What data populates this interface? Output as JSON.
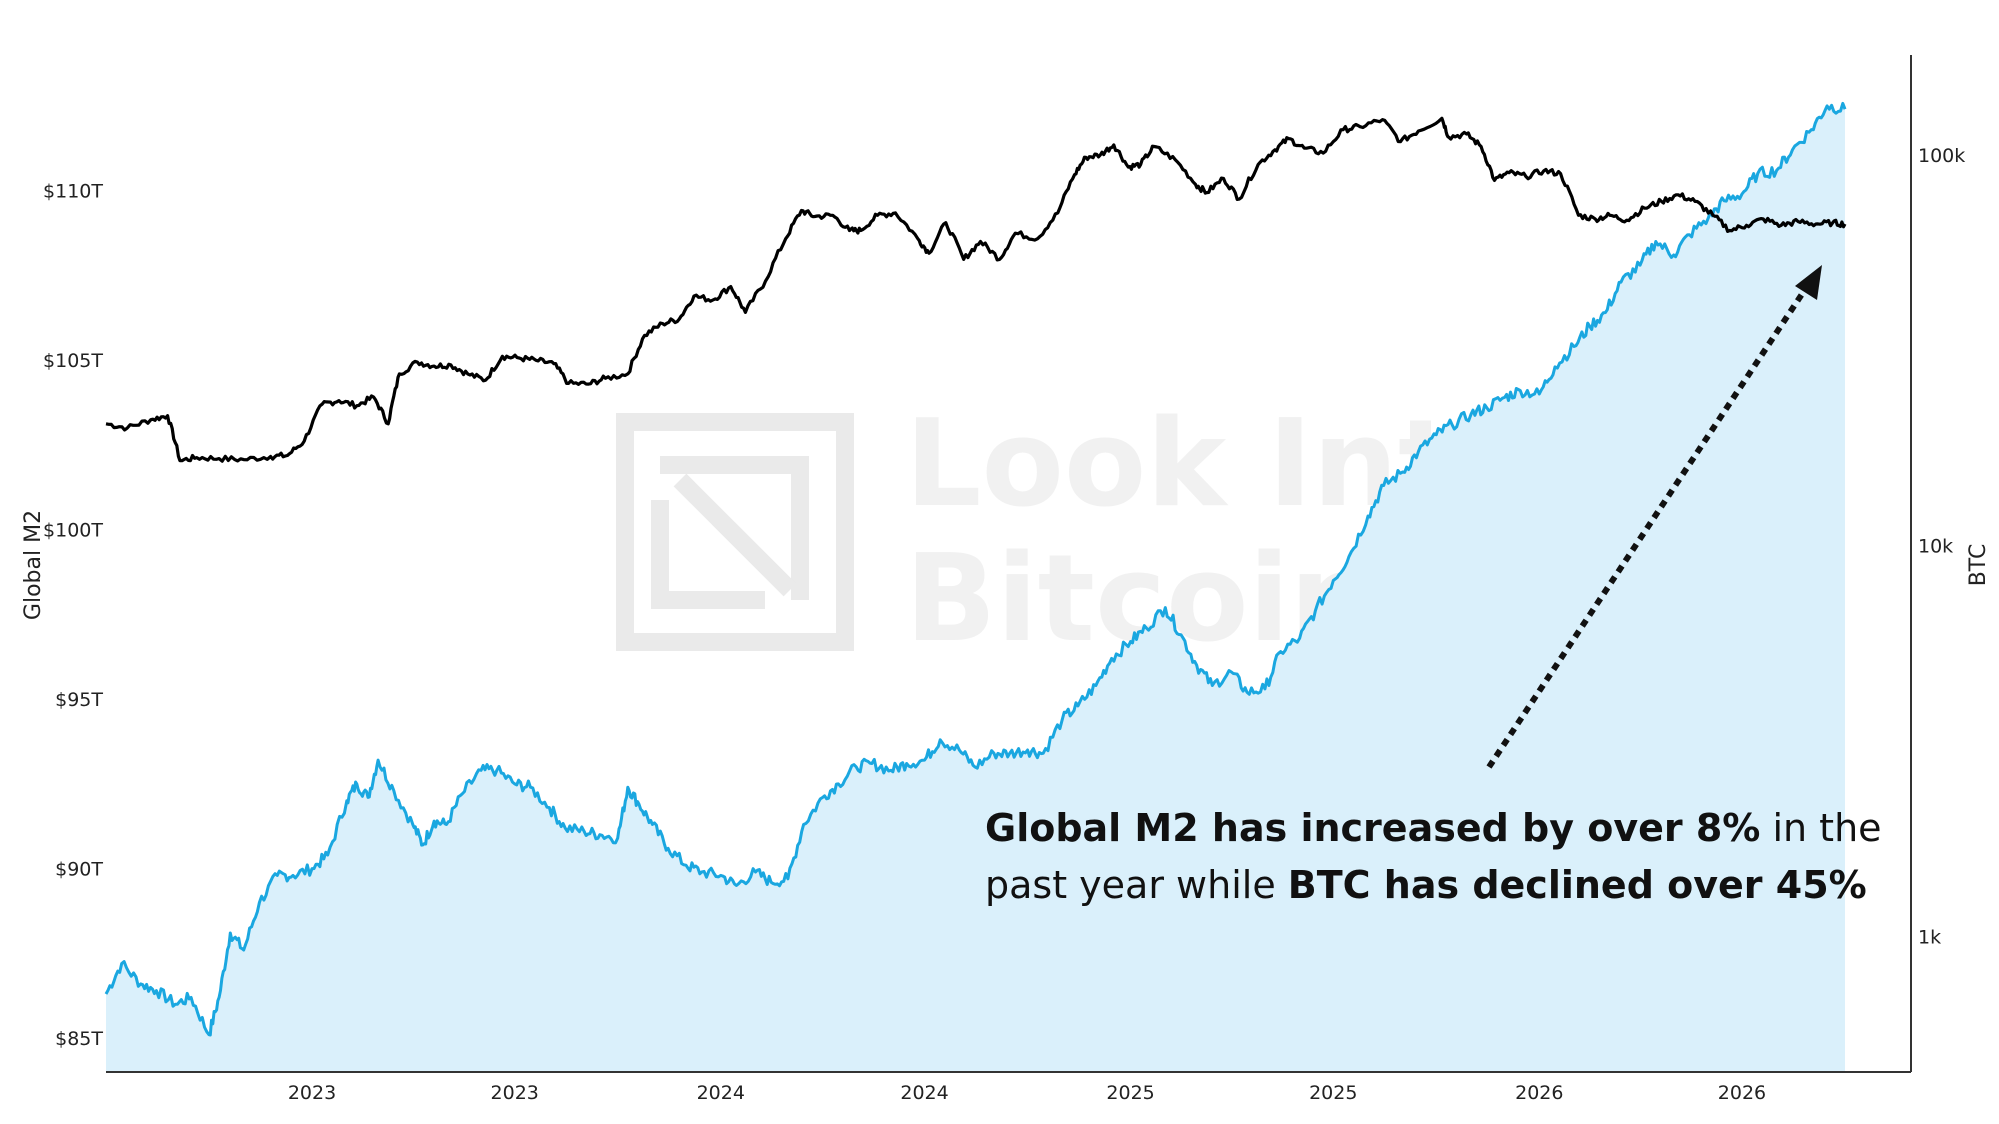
{
  "chart_data": {
    "type": "line",
    "left_axis": {
      "title": "Global M2",
      "ticks": [
        "$85T",
        "$90T",
        "$95T",
        "$100T",
        "$105T",
        "$110T"
      ],
      "tick_values": [
        85,
        90,
        95,
        100,
        105,
        110
      ],
      "range": [
        84.0,
        114.0
      ]
    },
    "right_axis": {
      "title": "BTC",
      "scale": "log",
      "ticks": [
        "1k",
        "10k",
        "100k"
      ],
      "tick_values": [
        1000,
        10000,
        100000
      ],
      "range": [
        450,
        180000
      ]
    },
    "x_axis": {
      "tick_labels": [
        "2023",
        "2023",
        "2024",
        "2024",
        "2025",
        "2025",
        "2026",
        "2026"
      ],
      "tick_dates": [
        "2023-01-01",
        "2023-07-01",
        "2024-01-01",
        "2024-07-01",
        "2025-01-01",
        "2025-07-01",
        "2026-01-01",
        "2026-07-01"
      ],
      "range": [
        "2022-07-01",
        "2026-10-01"
      ]
    },
    "series": [
      {
        "name": "Global M2",
        "axis": "left",
        "color": "#1aa7e0",
        "fill": "#daf0fb",
        "points": [
          [
            "2022-07-01",
            86.3
          ],
          [
            "2022-07-15",
            87.2
          ],
          [
            "2022-08-01",
            86.6
          ],
          [
            "2022-08-15",
            86.4
          ],
          [
            "2022-09-01",
            86.0
          ],
          [
            "2022-09-15",
            86.2
          ],
          [
            "2022-10-01",
            85.1
          ],
          [
            "2022-10-10",
            86.2
          ],
          [
            "2022-10-20",
            88.1
          ],
          [
            "2022-11-01",
            87.6
          ],
          [
            "2022-11-15",
            89.0
          ],
          [
            "2022-12-01",
            89.8
          ],
          [
            "2022-12-15",
            89.8
          ],
          [
            "2023-01-01",
            90.0
          ],
          [
            "2023-01-15",
            90.4
          ],
          [
            "2023-02-01",
            92.0
          ],
          [
            "2023-02-10",
            92.5
          ],
          [
            "2023-02-20",
            92.1
          ],
          [
            "2023-03-01",
            93.2
          ],
          [
            "2023-03-15",
            92.3
          ],
          [
            "2023-04-01",
            91.3
          ],
          [
            "2023-04-10",
            90.7
          ],
          [
            "2023-04-20",
            91.4
          ],
          [
            "2023-05-01",
            91.3
          ],
          [
            "2023-05-15",
            92.2
          ],
          [
            "2023-06-01",
            92.9
          ],
          [
            "2023-06-15",
            92.9
          ],
          [
            "2023-07-01",
            92.5
          ],
          [
            "2023-07-15",
            92.4
          ],
          [
            "2023-08-01",
            91.8
          ],
          [
            "2023-08-15",
            91.2
          ],
          [
            "2023-09-01",
            91.1
          ],
          [
            "2023-09-15",
            91.0
          ],
          [
            "2023-10-01",
            90.9
          ],
          [
            "2023-10-10",
            92.4
          ],
          [
            "2023-10-20",
            91.9
          ],
          [
            "2023-11-01",
            91.3
          ],
          [
            "2023-11-15",
            90.6
          ],
          [
            "2023-12-01",
            90.1
          ],
          [
            "2023-12-15",
            89.9
          ],
          [
            "2024-01-01",
            89.8
          ],
          [
            "2024-01-15",
            89.5
          ],
          [
            "2024-02-01",
            89.9
          ],
          [
            "2024-02-15",
            89.6
          ],
          [
            "2024-03-01",
            89.7
          ],
          [
            "2024-03-15",
            91.3
          ],
          [
            "2024-04-01",
            92.1
          ],
          [
            "2024-04-15",
            92.5
          ],
          [
            "2024-05-01",
            93.0
          ],
          [
            "2024-05-15",
            93.1
          ],
          [
            "2024-06-01",
            92.9
          ],
          [
            "2024-06-15",
            93.1
          ],
          [
            "2024-07-01",
            93.2
          ],
          [
            "2024-07-15",
            93.8
          ],
          [
            "2024-08-01",
            93.5
          ],
          [
            "2024-08-15",
            93.0
          ],
          [
            "2024-09-01",
            93.4
          ],
          [
            "2024-09-15",
            93.4
          ],
          [
            "2024-10-01",
            93.5
          ],
          [
            "2024-10-15",
            93.4
          ],
          [
            "2024-11-01",
            94.4
          ],
          [
            "2024-11-15",
            94.8
          ],
          [
            "2024-12-01",
            95.4
          ],
          [
            "2024-12-15",
            96.2
          ],
          [
            "2025-01-01",
            96.7
          ],
          [
            "2025-01-15",
            97.1
          ],
          [
            "2025-02-01",
            97.7
          ],
          [
            "2025-02-15",
            96.9
          ],
          [
            "2025-03-01",
            96.0
          ],
          [
            "2025-03-15",
            95.4
          ],
          [
            "2025-04-01",
            95.8
          ],
          [
            "2025-04-15",
            95.2
          ],
          [
            "2025-05-01",
            95.3
          ],
          [
            "2025-05-15",
            96.4
          ],
          [
            "2025-06-01",
            96.8
          ],
          [
            "2025-06-15",
            97.6
          ],
          [
            "2025-07-01",
            98.5
          ],
          [
            "2025-07-15",
            99.2
          ],
          [
            "2025-08-01",
            100.4
          ],
          [
            "2025-08-15",
            101.3
          ],
          [
            "2025-09-01",
            101.7
          ],
          [
            "2025-09-15",
            102.3
          ],
          [
            "2025-10-01",
            102.8
          ],
          [
            "2025-10-15",
            103.1
          ],
          [
            "2025-11-01",
            103.4
          ],
          [
            "2025-11-15",
            103.6
          ],
          [
            "2025-12-01",
            103.9
          ],
          [
            "2025-12-15",
            104.1
          ],
          [
            "2026-01-01",
            104.0
          ],
          [
            "2026-01-15",
            104.8
          ],
          [
            "2026-02-01",
            105.4
          ],
          [
            "2026-02-15",
            106.0
          ],
          [
            "2026-03-01",
            106.4
          ],
          [
            "2026-03-15",
            107.3
          ],
          [
            "2026-04-01",
            107.8
          ],
          [
            "2026-04-15",
            108.5
          ],
          [
            "2026-05-01",
            108.1
          ],
          [
            "2026-05-15",
            108.7
          ],
          [
            "2026-06-01",
            109.2
          ],
          [
            "2026-06-15",
            109.7
          ],
          [
            "2026-07-01",
            109.9
          ],
          [
            "2026-07-15",
            110.5
          ],
          [
            "2026-08-01",
            110.6
          ],
          [
            "2026-08-15",
            111.2
          ],
          [
            "2026-09-01",
            111.8
          ],
          [
            "2026-09-15",
            112.5
          ],
          [
            "2026-10-01",
            112.4
          ]
        ]
      },
      {
        "name": "BTC",
        "axis": "right",
        "color": "#000000",
        "points": [
          [
            "2022-07-01",
            20500
          ],
          [
            "2022-07-20",
            20000
          ],
          [
            "2022-08-10",
            21000
          ],
          [
            "2022-08-25",
            21500
          ],
          [
            "2022-09-05",
            16500
          ],
          [
            "2022-09-20",
            16800
          ],
          [
            "2022-10-10",
            16700
          ],
          [
            "2022-11-01",
            16600
          ],
          [
            "2022-11-25",
            16900
          ],
          [
            "2022-12-10",
            17000
          ],
          [
            "2022-12-25",
            18500
          ],
          [
            "2023-01-10",
            23000
          ],
          [
            "2023-01-25",
            23500
          ],
          [
            "2023-02-10",
            22800
          ],
          [
            "2023-02-25",
            24000
          ],
          [
            "2023-03-10",
            20500
          ],
          [
            "2023-03-20",
            27500
          ],
          [
            "2023-04-05",
            29500
          ],
          [
            "2023-04-20",
            28800
          ],
          [
            "2023-05-05",
            29000
          ],
          [
            "2023-05-20",
            27500
          ],
          [
            "2023-06-05",
            26500
          ],
          [
            "2023-06-20",
            30500
          ],
          [
            "2023-07-05",
            30200
          ],
          [
            "2023-07-20",
            29800
          ],
          [
            "2023-08-05",
            29200
          ],
          [
            "2023-08-18",
            26000
          ],
          [
            "2023-09-05",
            25900
          ],
          [
            "2023-09-20",
            26800
          ],
          [
            "2023-10-10",
            27500
          ],
          [
            "2023-10-25",
            34500
          ],
          [
            "2023-11-10",
            37000
          ],
          [
            "2023-11-25",
            38000
          ],
          [
            "2023-12-08",
            43500
          ],
          [
            "2023-12-25",
            42500
          ],
          [
            "2024-01-10",
            46000
          ],
          [
            "2024-01-23",
            39500
          ],
          [
            "2024-02-10",
            47500
          ],
          [
            "2024-02-28",
            61000
          ],
          [
            "2024-03-13",
            72000
          ],
          [
            "2024-03-25",
            69500
          ],
          [
            "2024-04-10",
            70000
          ],
          [
            "2024-04-25",
            64000
          ],
          [
            "2024-05-05",
            64000
          ],
          [
            "2024-05-20",
            70000
          ],
          [
            "2024-06-05",
            71000
          ],
          [
            "2024-06-25",
            61000
          ],
          [
            "2024-07-05",
            56000
          ],
          [
            "2024-07-20",
            67000
          ],
          [
            "2024-08-05",
            54000
          ],
          [
            "2024-08-20",
            60000
          ],
          [
            "2024-09-06",
            54000
          ],
          [
            "2024-09-20",
            63000
          ],
          [
            "2024-10-10",
            61000
          ],
          [
            "2024-10-28",
            71000
          ],
          [
            "2024-11-12",
            89000
          ],
          [
            "2024-11-22",
            98500
          ],
          [
            "2024-12-05",
            100000
          ],
          [
            "2024-12-17",
            106000
          ],
          [
            "2024-12-30",
            93000
          ],
          [
            "2025-01-10",
            94500
          ],
          [
            "2025-01-22",
            105000
          ],
          [
            "2025-02-10",
            97000
          ],
          [
            "2025-02-28",
            84000
          ],
          [
            "2025-03-10",
            80000
          ],
          [
            "2025-03-25",
            87000
          ],
          [
            "2025-04-08",
            77000
          ],
          [
            "2025-04-25",
            94500
          ],
          [
            "2025-05-10",
            103000
          ],
          [
            "2025-05-22",
            110000
          ],
          [
            "2025-06-05",
            104000
          ],
          [
            "2025-06-22",
            101000
          ],
          [
            "2025-07-10",
            116000
          ],
          [
            "2025-07-25",
            118000
          ],
          [
            "2025-08-14",
            123000
          ],
          [
            "2025-08-30",
            108000
          ],
          [
            "2025-09-15",
            115000
          ],
          [
            "2025-10-06",
            124000
          ],
          [
            "2025-10-12",
            111000
          ],
          [
            "2025-10-28",
            113000
          ],
          [
            "2025-11-10",
            105000
          ],
          [
            "2025-11-22",
            86000
          ],
          [
            "2025-12-05",
            90000
          ],
          [
            "2025-12-20",
            88000
          ],
          [
            "2026-01-05",
            91000
          ],
          [
            "2026-01-20",
            89500
          ],
          [
            "2026-02-05",
            70000
          ],
          [
            "2026-02-20",
            68500
          ],
          [
            "2026-03-05",
            70000
          ],
          [
            "2026-03-20",
            68000
          ],
          [
            "2026-04-05",
            73000
          ],
          [
            "2026-04-20",
            76000
          ],
          [
            "2026-05-05",
            79000
          ],
          [
            "2026-05-20",
            76000
          ],
          [
            "2026-06-05",
            70000
          ],
          [
            "2026-06-20",
            64000
          ],
          [
            "2026-07-05",
            66000
          ],
          [
            "2026-07-20",
            68500
          ],
          [
            "2026-08-05",
            66000
          ],
          [
            "2026-08-20",
            67500
          ],
          [
            "2026-09-05",
            66500
          ],
          [
            "2026-09-20",
            67000
          ],
          [
            "2026-10-01",
            66500
          ]
        ]
      }
    ],
    "annotation": {
      "line1_bold": "Global M2 has increased by over 8%",
      "line1_rest": " in the",
      "line2_rest": "past year while ",
      "line2_bold": "BTC has declined over 45%"
    },
    "watermark": {
      "line1": "Look Into",
      "line2": "Bitcoin"
    },
    "grid": false,
    "legend": "none"
  }
}
